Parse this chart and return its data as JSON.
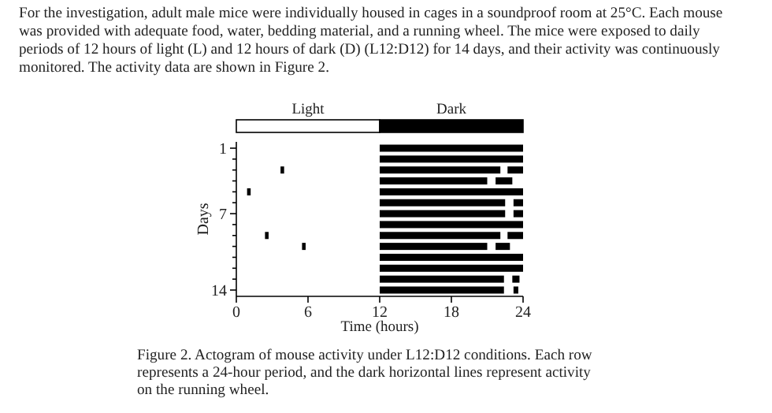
{
  "chart_data": {
    "type": "bar",
    "orientation": "horizontal",
    "xlabel": "Time (hours)",
    "ylabel": "Days",
    "categories": [
      "1",
      null,
      null,
      null,
      null,
      null,
      "7",
      null,
      null,
      null,
      null,
      null,
      null,
      "14"
    ],
    "xlim": [
      0,
      24
    ],
    "xticks": [
      0,
      6,
      12,
      18,
      24
    ],
    "grid": false,
    "series": [
      {
        "color": "#000000",
        "base": [
          12,
          12,
          12,
          12,
          12,
          12,
          12,
          12,
          12,
          12,
          12,
          12,
          12,
          12
        ],
        "values": [
          12,
          12,
          10.1,
          9,
          12,
          10.5,
          10.5,
          12,
          10.1,
          9,
          12,
          12,
          10.4,
          10.4
        ]
      },
      {
        "color": "#000000",
        "base": [
          null,
          null,
          22.7,
          21.7,
          null,
          23.2,
          23.2,
          null,
          22.7,
          21.7,
          null,
          null,
          23.1,
          23.2
        ],
        "values": [
          null,
          null,
          1.3,
          1.4,
          null,
          0.8,
          0.8,
          null,
          1.3,
          1.2,
          null,
          null,
          0.6,
          0.4
        ]
      },
      {
        "color": "#000000",
        "base": [
          null,
          null,
          3.7,
          null,
          0.9,
          null,
          null,
          null,
          2.4,
          5.5,
          null,
          null,
          null,
          null
        ],
        "values": [
          null,
          null,
          0.3,
          null,
          0.3,
          null,
          null,
          null,
          0.3,
          0.3,
          null,
          null,
          null,
          null
        ]
      }
    ],
    "annotations": [
      "For the investigation, adult male mice were individually housed in cages in a soundproof room at 25°C. Each mouse was provided with adequate food, water, bedding material, and a running wheel. The mice were exposed to daily periods of 12 hours of light (L) and 12 hours of dark (D) (L12:D12) for 14 days, and their activity was continuously monitored. The activity data are shown in Figure 2.",
      "Light",
      "Dark",
      "Figure 2. Actogram of mouse activity under L12:D12 conditions. Each row represents a 24-hour period, and the dark horizontal lines represent activity on the running wheel."
    ]
  }
}
